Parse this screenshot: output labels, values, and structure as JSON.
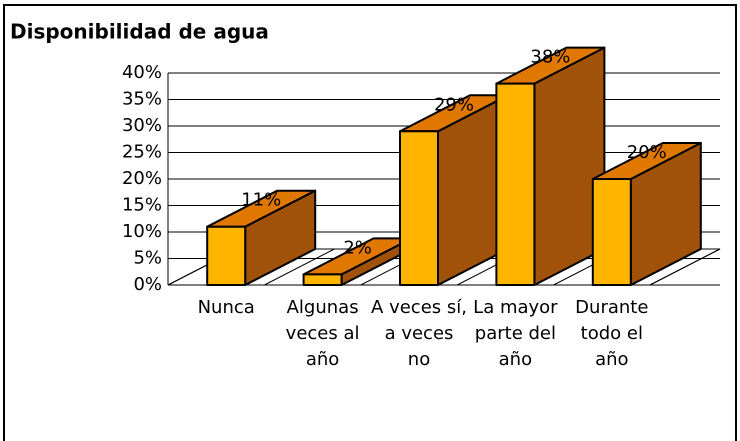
{
  "chart_data": {
    "type": "bar3d",
    "title": "Disponibilidad de agua",
    "categories": [
      "Nunca",
      "Algunas veces al año",
      "A veces sí, a veces no",
      "La mayor parte del año",
      "Durante todo el año"
    ],
    "values": [
      11,
      2,
      29,
      38,
      20
    ],
    "value_labels": [
      "11%",
      "2%",
      "29%",
      "38%",
      "20%"
    ],
    "colors": {
      "front": "#ffb400",
      "top": "#e07800",
      "side": "#a0520a"
    },
    "ylim": [
      0,
      40
    ],
    "yticks": [
      {
        "value": 0,
        "label": "0%"
      },
      {
        "value": 5,
        "label": "5%"
      },
      {
        "value": 10,
        "label": "10%"
      },
      {
        "value": 15,
        "label": "15%"
      },
      {
        "value": 20,
        "label": "20%"
      },
      {
        "value": 25,
        "label": "25%"
      },
      {
        "value": 30,
        "label": "30%"
      },
      {
        "value": 35,
        "label": "35%"
      },
      {
        "value": 40,
        "label": "40%"
      }
    ],
    "grid": true
  }
}
